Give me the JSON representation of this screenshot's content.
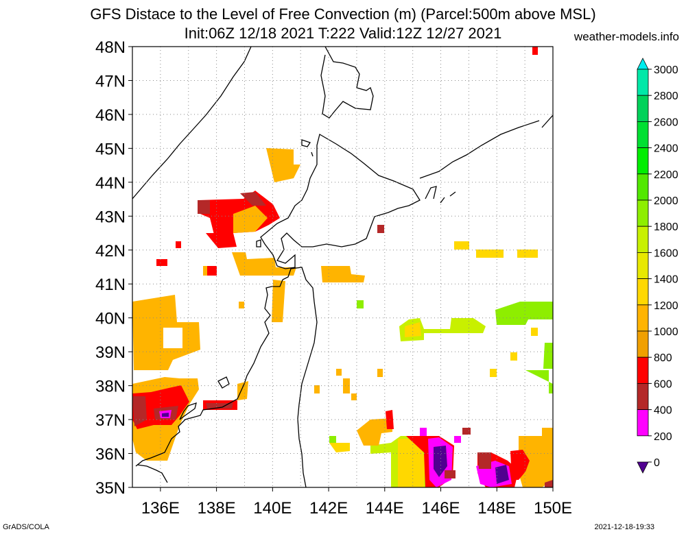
{
  "header": {
    "title_line1": "GFS Distace to the Level of Free Convection (m) (Parcel:500m above MSL)",
    "title_line2": "Init:06Z 12/18 2021 T:222 Valid:12Z 12/27 2021",
    "site": "weather-models.info"
  },
  "map": {
    "lat_labels": [
      "48N",
      "47N",
      "46N",
      "45N",
      "44N",
      "43N",
      "42N",
      "41N",
      "40N",
      "39N",
      "38N",
      "37N",
      "36N",
      "35N"
    ],
    "lon_labels": [
      "136E",
      "138E",
      "140E",
      "142E",
      "144E",
      "146E",
      "148E",
      "150E"
    ],
    "lat_range": [
      35,
      48
    ],
    "lon_range": [
      135,
      150
    ],
    "grid": true
  },
  "colorbar": {
    "labels": [
      "3000",
      "2800",
      "2600",
      "2400",
      "2200",
      "2000",
      "1800",
      "1600",
      "1400",
      "1200",
      "1000",
      "800",
      "600",
      "400",
      "200",
      "0"
    ],
    "colors": [
      "#00eeee",
      "#00e8a8",
      "#00d25a",
      "#00e032",
      "#00ee00",
      "#52e800",
      "#8eee00",
      "#c8f000",
      "#e8e800",
      "#ffd800",
      "#ffb400",
      "#f0a000",
      "#ff0000",
      "#b42828",
      "#ff00ff",
      "#500090"
    ]
  },
  "footer": {
    "left": "GrADS/COLA",
    "right": "2021-12-18-19:33"
  }
}
